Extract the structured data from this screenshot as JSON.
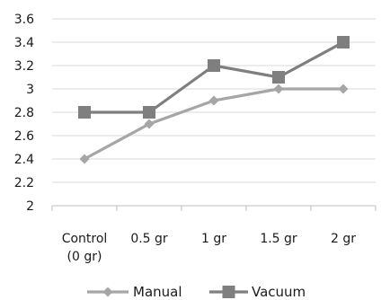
{
  "chart_data": {
    "type": "line",
    "categories": [
      [
        "Control",
        "(0 gr)"
      ],
      [
        "0.5 gr"
      ],
      [
        "1 gr"
      ],
      [
        "1.5 gr"
      ],
      [
        "2 gr"
      ]
    ],
    "ylim": [
      2,
      3.6
    ],
    "yticks": [
      "2",
      "2.2",
      "2.4",
      "2.6",
      "2.8",
      "3",
      "3.2",
      "3.4",
      "3.6"
    ],
    "grid": true,
    "legend": "bottom",
    "series": [
      {
        "name": "Manual",
        "values": [
          2.4,
          2.7,
          2.9,
          3.0,
          3.0
        ],
        "color": "#a6a6a6",
        "marker": "diamond"
      },
      {
        "name": "Vacuum",
        "values": [
          2.8,
          2.8,
          3.2,
          3.1,
          3.4
        ],
        "color": "#7f7f7f",
        "marker": "square"
      }
    ]
  }
}
